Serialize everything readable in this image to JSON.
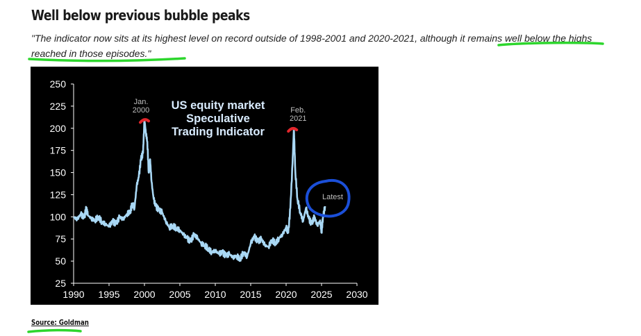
{
  "title": "Well below previous bubble peaks",
  "quote": "\"The indicator now sits at its highest level on record outside of 1998-2001 and 2020-2021, although it remains well below the highs reached in those episodes.\"",
  "source": "Source: Goldman",
  "colors": {
    "chart_background": "#000000",
    "series": "#a9d8f5",
    "axis_text": "#ffffff",
    "annotation_text": "#bfbfbf",
    "peak_marker": "#e2262b",
    "latest_circle": "#1b4fd8",
    "highlight_underline": "#2dd62d"
  },
  "chart_data": {
    "type": "line",
    "title": "US equity market Speculative Trading Indicator",
    "title_lines": [
      "US equity market",
      "Speculative",
      "Trading Indicator"
    ],
    "xlim": [
      1990,
      2030
    ],
    "ylim": [
      25,
      250
    ],
    "xticks": [
      1990,
      1995,
      2000,
      2005,
      2010,
      2015,
      2020,
      2025,
      2030
    ],
    "yticks": [
      25,
      50,
      75,
      100,
      125,
      150,
      175,
      200,
      225,
      250
    ],
    "grid": false,
    "annotations": [
      {
        "label_lines": [
          "Jan.",
          "2000"
        ],
        "x": 2000.0,
        "y": 209
      },
      {
        "label_lines": [
          "Feb.",
          "2021"
        ],
        "x": 2021.1,
        "y": 199
      },
      {
        "label_lines": [
          "Latest"
        ],
        "x": 2025.4,
        "y": 115
      }
    ],
    "series": [
      {
        "x": [
          1990.0,
          1990.5,
          1991.0,
          1991.5,
          1991.8,
          1992.0,
          1992.5,
          1993.0,
          1993.5,
          1994.0,
          1994.5,
          1995.0,
          1995.5,
          1996.0,
          1996.5,
          1997.0,
          1997.5,
          1998.0,
          1998.3,
          1998.6,
          1998.9,
          1999.2,
          1999.5,
          1999.8,
          2000.0,
          2000.2,
          2000.4,
          2000.6,
          2000.8,
          2001.0,
          2001.3,
          2001.6,
          2002.0,
          2002.5,
          2003.0,
          2003.5,
          2004.0,
          2004.5,
          2005.0,
          2005.5,
          2006.0,
          2006.5,
          2007.0,
          2007.5,
          2008.0,
          2008.5,
          2009.0,
          2009.5,
          2010.0,
          2010.5,
          2011.0,
          2011.5,
          2012.0,
          2012.5,
          2013.0,
          2013.5,
          2014.0,
          2014.5,
          2015.0,
          2015.5,
          2016.0,
          2016.5,
          2017.0,
          2017.5,
          2018.0,
          2018.5,
          2019.0,
          2019.5,
          2020.0,
          2020.3,
          2020.6,
          2020.9,
          2021.1,
          2021.3,
          2021.6,
          2022.0,
          2022.4,
          2022.8,
          2023.2,
          2023.6,
          2024.0,
          2024.4,
          2024.8,
          2025.0,
          2025.2,
          2025.5
        ],
        "y": [
          100,
          97,
          103,
          99,
          110,
          102,
          98,
          96,
          100,
          94,
          92,
          89,
          95,
          92,
          100,
          97,
          103,
          106,
          115,
          110,
          135,
          145,
          165,
          172,
          210,
          195,
          185,
          150,
          165,
          140,
          120,
          112,
          108,
          105,
          95,
          88,
          90,
          87,
          85,
          80,
          76,
          72,
          80,
          76,
          70,
          68,
          64,
          60,
          62,
          58,
          60,
          56,
          58,
          54,
          56,
          52,
          60,
          55,
          70,
          78,
          72,
          75,
          68,
          66,
          74,
          70,
          76,
          80,
          88,
          82,
          110,
          160,
          200,
          150,
          120,
          105,
          95,
          110,
          98,
          92,
          100,
          90,
          96,
          82,
          100,
          112
        ]
      }
    ]
  }
}
